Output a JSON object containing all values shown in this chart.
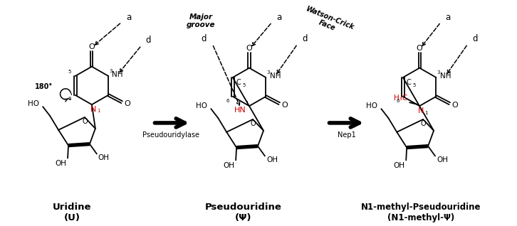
{
  "background": "#ffffff",
  "black_color": "#000000",
  "red_color": "#cc0000",
  "mol1_name": "Uridine",
  "mol1_sym": "(U)",
  "mol2_name": "Pseudouridine",
  "mol2_sym": "(Ψ)",
  "mol3_name": "N1-methyl-Pseudouridine",
  "mol3_sym": "(N1-methyl-Ψ)",
  "arrow1_label": "Pseudouridylase",
  "arrow2_label": "Nep1",
  "major_groove": "Major\ngroove",
  "watson_crick": "Watson-Crick\nFace",
  "angle_label": "180°",
  "label_a": "a",
  "label_d": "d"
}
